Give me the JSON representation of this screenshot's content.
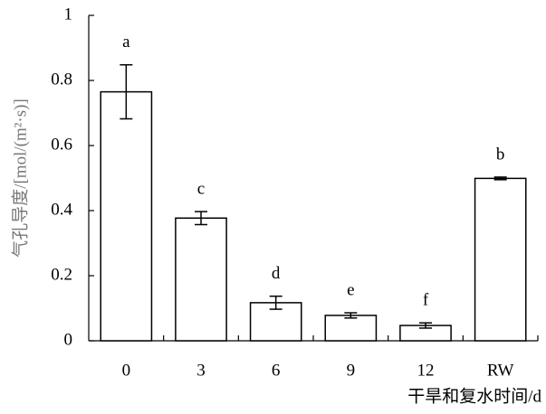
{
  "chart_data": {
    "type": "bar",
    "categories": [
      "0",
      "3",
      "6",
      "9",
      "12",
      "RW"
    ],
    "values": [
      0.765,
      0.377,
      0.117,
      0.078,
      0.047,
      0.499
    ],
    "errors": [
      0.083,
      0.02,
      0.02,
      0.008,
      0.008,
      0.004
    ],
    "letters": [
      "a",
      "c",
      "d",
      "e",
      "f",
      "b"
    ],
    "color": "#ffffff",
    "ylim": [
      0,
      1
    ],
    "yticks": [
      0,
      0.2,
      0.4,
      0.6,
      0.8,
      1
    ],
    "ylabel": "气孔导度/[mol/(m²·s)]",
    "xlabel": "干旱和复水时间/d"
  }
}
